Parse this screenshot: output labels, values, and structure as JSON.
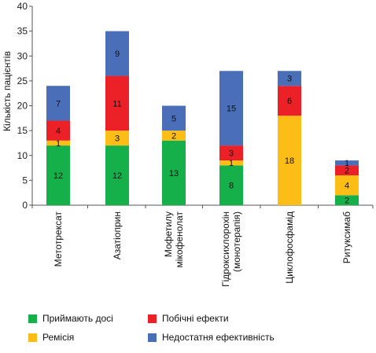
{
  "chart_data": {
    "type": "bar",
    "stacked": true,
    "categories": [
      [
        "Метотрексат"
      ],
      [
        "Азатіоприн"
      ],
      [
        "Мофетилу",
        "мікофенолат"
      ],
      [
        "Гідроксихлорохін",
        "(монотерапія)"
      ],
      [
        "Циклофосфамід"
      ],
      [
        "Ритуксимаб"
      ]
    ],
    "series": [
      {
        "name": "Приймають досі",
        "color": "#15b04a",
        "values": [
          12,
          12,
          13,
          8,
          0,
          2
        ]
      },
      {
        "name": "Ремісія",
        "color": "#fbbd16",
        "values": [
          1,
          3,
          2,
          1,
          18,
          4
        ]
      },
      {
        "name": "Побічні ефекти",
        "color": "#ec2027",
        "values": [
          4,
          11,
          0,
          3,
          6,
          2
        ]
      },
      {
        "name": "Недостатня ефективність",
        "color": "#4a6fb8",
        "values": [
          7,
          9,
          5,
          15,
          3,
          1
        ]
      }
    ],
    "ylabel": "Кількість пацієнтів",
    "ylim": [
      0,
      40
    ],
    "yticks": [
      0,
      5,
      10,
      15,
      20,
      25,
      30,
      35,
      40
    ],
    "grid": false,
    "legend_position": "bottom"
  }
}
